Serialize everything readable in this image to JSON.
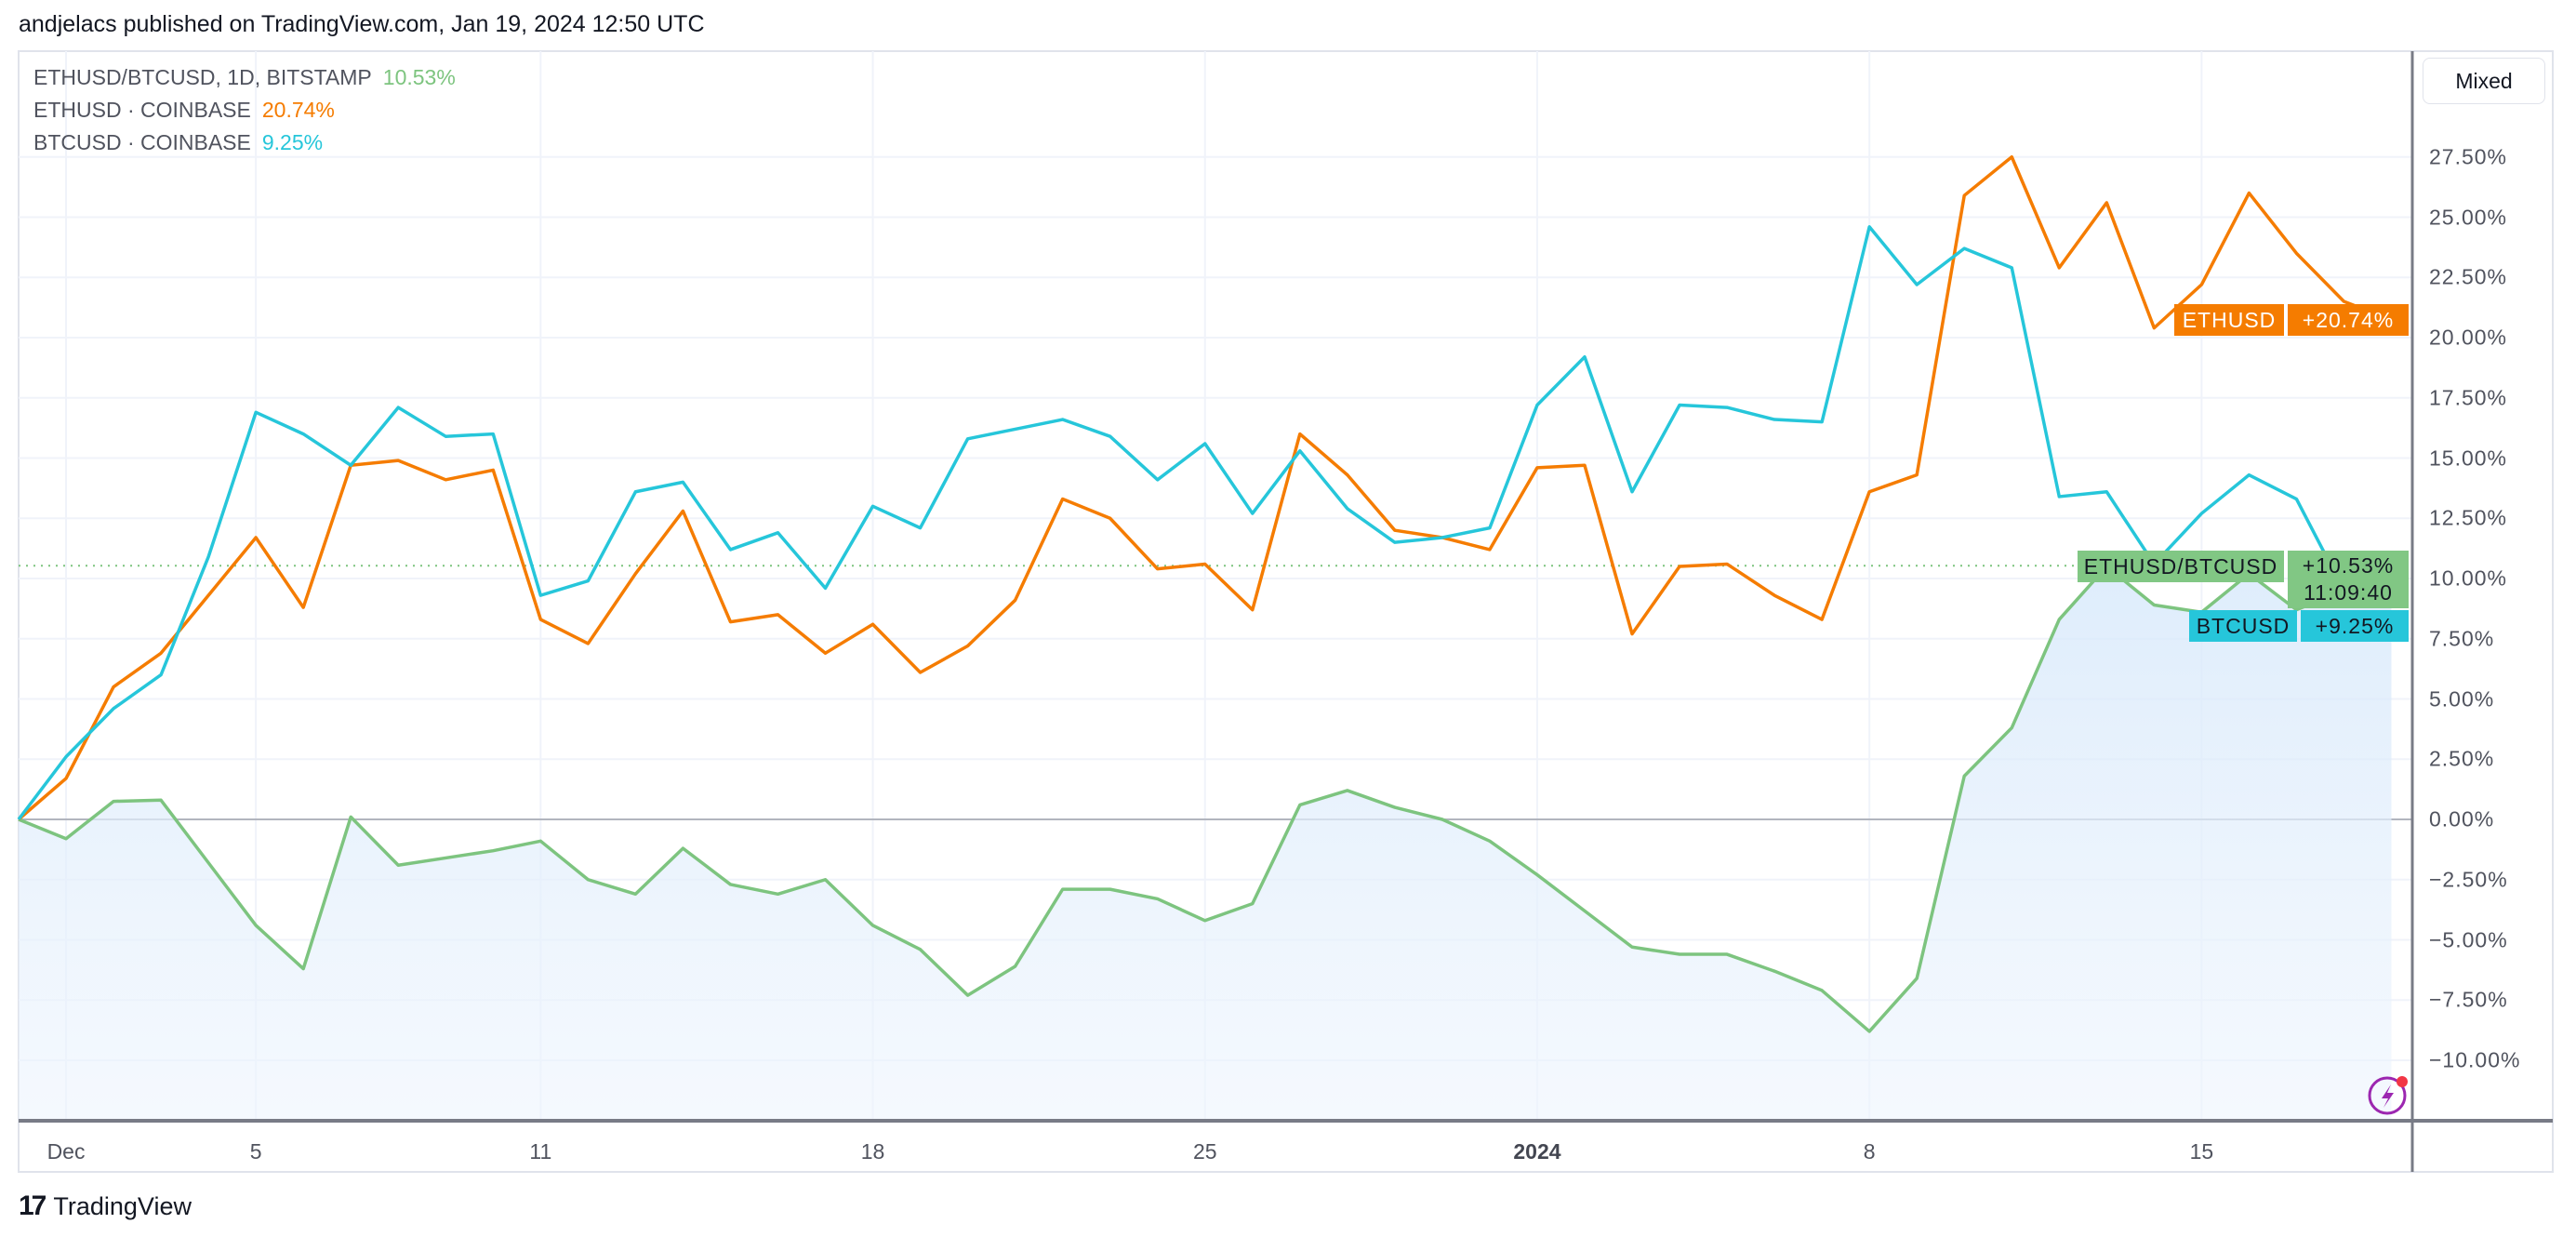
{
  "header": {
    "published": "andjelacs published on TradingView.com, Jan 19, 2024 12:50 UTC"
  },
  "legend": [
    {
      "label": "ETHUSD/BTCUSD, 1D, BITSTAMP",
      "value": "10.53%",
      "color": "#7dc47f"
    },
    {
      "label": "ETHUSD · COINBASE",
      "value": "20.74%",
      "color": "#f57c00"
    },
    {
      "label": "BTCUSD · COINBASE",
      "value": "9.25%",
      "color": "#26c6da"
    }
  ],
  "scale_button": "Mixed",
  "tags": {
    "ethusd": {
      "name": "ETHUSD",
      "value": "+20.74%"
    },
    "ratio": {
      "name": "ETHUSD/BTCUSD",
      "value": "+10.53%",
      "countdown": "11:09:40"
    },
    "btcusd": {
      "name": "BTCUSD",
      "value": "+9.25%"
    }
  },
  "logo": {
    "mark": "17",
    "text": "TradingView"
  },
  "chart_data": {
    "type": "line",
    "x_start": "2023-11-30",
    "x_end": "2024-01-19",
    "x_interval": "1D",
    "x_tick_labels": [
      {
        "label": "Dec",
        "date": "2023-12-01"
      },
      {
        "label": "5",
        "date": "2023-12-05"
      },
      {
        "label": "11",
        "date": "2023-12-11"
      },
      {
        "label": "18",
        "date": "2023-12-18"
      },
      {
        "label": "25",
        "date": "2023-12-25"
      },
      {
        "label": "2024",
        "date": "2024-01-01",
        "bold": true
      },
      {
        "label": "8",
        "date": "2024-01-08"
      },
      {
        "label": "15",
        "date": "2024-01-15"
      }
    ],
    "y_unit": "%",
    "ylim": [
      -12.5,
      31.9
    ],
    "y_tick_labels": [
      "27.50%",
      "25.00%",
      "22.50%",
      "20.00%",
      "17.50%",
      "15.00%",
      "12.50%",
      "10.00%",
      "7.50%",
      "5.00%",
      "2.50%",
      "0.00%",
      "−2.50%",
      "−5.00%",
      "−7.50%",
      "−10.00%"
    ],
    "y_ticks": [
      27.5,
      25,
      22.5,
      20,
      17.5,
      15,
      12.5,
      10,
      7.5,
      5,
      2.5,
      0,
      -2.5,
      -5,
      -7.5,
      -10
    ],
    "grid": true,
    "legend_position": "top-left",
    "series": [
      {
        "name": "ETHUSD/BTCUSD",
        "color": "#7dc47f",
        "area": true,
        "last": 10.53,
        "values": [
          0,
          -0.8,
          0.75,
          0.8,
          -1.8,
          -4.4,
          -6.2,
          0.1,
          -1.9,
          -1.6,
          -1.3,
          -0.9,
          -2.5,
          -3.1,
          -1.2,
          -2.7,
          -3.1,
          -2.5,
          -4.4,
          -5.4,
          -7.3,
          -6.1,
          -2.9,
          -2.9,
          -3.3,
          -4.2,
          -3.5,
          0.6,
          1.2,
          0.5,
          0,
          -0.9,
          -2.3,
          -3.8,
          -5.3,
          -5.6,
          -5.6,
          -6.3,
          -7.1,
          -8.8,
          -6.6,
          1.8,
          3.8,
          8.3,
          10.5,
          8.9,
          8.6,
          10.2,
          8.7,
          9.5,
          10.53
        ]
      },
      {
        "name": "ETHUSD",
        "color": "#f57c00",
        "last": 20.74,
        "values": [
          0,
          1.7,
          5.5,
          6.9,
          9.3,
          11.7,
          8.8,
          14.7,
          14.9,
          14.1,
          14.5,
          8.3,
          7.3,
          10.2,
          12.8,
          8.2,
          8.5,
          6.9,
          8.1,
          6.1,
          7.2,
          9.1,
          13.3,
          12.5,
          10.4,
          10.6,
          8.7,
          16.0,
          14.3,
          12.0,
          11.7,
          11.2,
          14.6,
          14.7,
          7.7,
          10.5,
          10.6,
          9.3,
          8.3,
          13.6,
          14.3,
          25.9,
          27.5,
          22.9,
          25.6,
          20.4,
          22.2,
          26.0,
          23.5,
          21.5,
          20.74
        ]
      },
      {
        "name": "BTCUSD",
        "color": "#26c6da",
        "last": 9.25,
        "values": [
          0,
          2.6,
          4.6,
          6.0,
          10.9,
          16.9,
          16.0,
          14.7,
          17.1,
          15.9,
          16.0,
          9.3,
          9.9,
          13.6,
          14.0,
          11.2,
          11.9,
          9.6,
          13.0,
          12.1,
          15.8,
          16.2,
          16.6,
          15.9,
          14.1,
          15.6,
          12.7,
          15.3,
          12.9,
          11.5,
          11.7,
          12.1,
          17.2,
          19.2,
          13.6,
          17.2,
          17.1,
          16.6,
          16.5,
          24.6,
          22.2,
          23.7,
          22.9,
          13.4,
          13.6,
          10.6,
          12.7,
          14.3,
          13.3,
          9.5,
          9.25
        ]
      }
    ]
  }
}
